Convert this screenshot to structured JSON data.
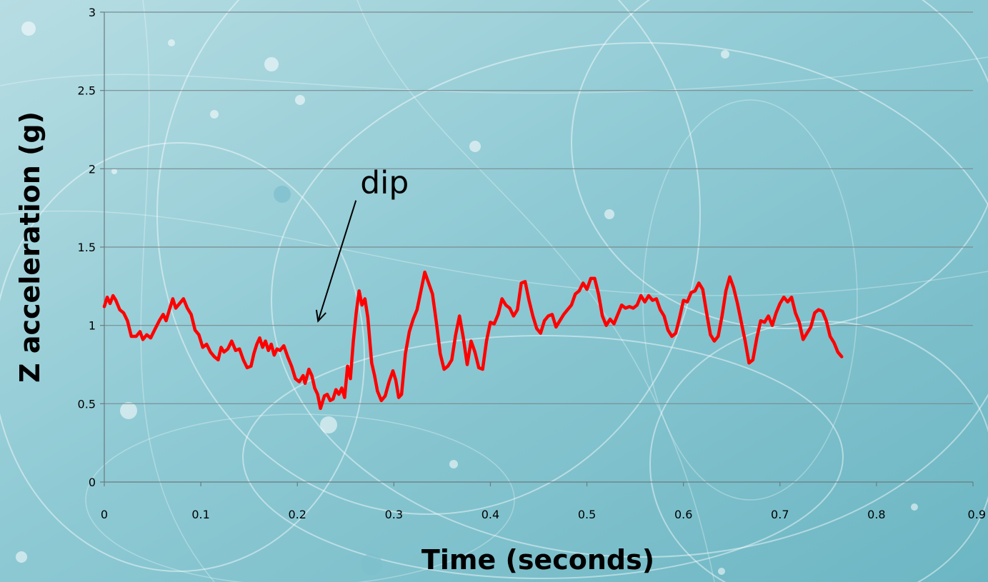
{
  "chart_data": {
    "type": "line",
    "title": "",
    "xlabel": "Time (seconds)",
    "ylabel": "Z acceleration (g)",
    "xlim": [
      0,
      0.9
    ],
    "ylim": [
      0,
      3
    ],
    "x_ticks": [
      "0",
      "0.1",
      "0.2",
      "0.3",
      "0.4",
      "0.5",
      "0.6",
      "0.7",
      "0.8",
      "0.9"
    ],
    "y_ticks": [
      "0",
      "0.5",
      "1",
      "1.5",
      "2",
      "2.5",
      "3"
    ],
    "x_tick_values": [
      0,
      0.1,
      0.2,
      0.3,
      0.4,
      0.5,
      0.6,
      0.7,
      0.8,
      0.9
    ],
    "y_tick_values": [
      0,
      0.5,
      1,
      1.5,
      2,
      2.5,
      3
    ],
    "grid": "horizontal",
    "legend": "none",
    "series": [
      {
        "color": "#ff0000",
        "points": [
          [
            0.0,
            1.12
          ],
          [
            0.003,
            1.18
          ],
          [
            0.006,
            1.14
          ],
          [
            0.009,
            1.19
          ],
          [
            0.012,
            1.16
          ],
          [
            0.016,
            1.1
          ],
          [
            0.02,
            1.08
          ],
          [
            0.024,
            1.03
          ],
          [
            0.028,
            0.93
          ],
          [
            0.033,
            0.93
          ],
          [
            0.037,
            0.96
          ],
          [
            0.04,
            0.91
          ],
          [
            0.044,
            0.94
          ],
          [
            0.048,
            0.92
          ],
          [
            0.052,
            0.97
          ],
          [
            0.057,
            1.03
          ],
          [
            0.061,
            1.07
          ],
          [
            0.064,
            1.03
          ],
          [
            0.067,
            1.09
          ],
          [
            0.071,
            1.17
          ],
          [
            0.074,
            1.11
          ],
          [
            0.078,
            1.14
          ],
          [
            0.082,
            1.17
          ],
          [
            0.086,
            1.11
          ],
          [
            0.09,
            1.07
          ],
          [
            0.094,
            0.97
          ],
          [
            0.098,
            0.94
          ],
          [
            0.102,
            0.86
          ],
          [
            0.106,
            0.88
          ],
          [
            0.11,
            0.83
          ],
          [
            0.114,
            0.8
          ],
          [
            0.118,
            0.78
          ],
          [
            0.121,
            0.86
          ],
          [
            0.124,
            0.83
          ],
          [
            0.128,
            0.85
          ],
          [
            0.132,
            0.9
          ],
          [
            0.136,
            0.84
          ],
          [
            0.14,
            0.85
          ],
          [
            0.144,
            0.78
          ],
          [
            0.148,
            0.73
          ],
          [
            0.152,
            0.74
          ],
          [
            0.155,
            0.82
          ],
          [
            0.158,
            0.88
          ],
          [
            0.161,
            0.92
          ],
          [
            0.164,
            0.86
          ],
          [
            0.167,
            0.9
          ],
          [
            0.17,
            0.84
          ],
          [
            0.173,
            0.88
          ],
          [
            0.176,
            0.81
          ],
          [
            0.179,
            0.85
          ],
          [
            0.182,
            0.84
          ],
          [
            0.186,
            0.87
          ],
          [
            0.19,
            0.8
          ],
          [
            0.194,
            0.74
          ],
          [
            0.198,
            0.66
          ],
          [
            0.202,
            0.64
          ],
          [
            0.206,
            0.68
          ],
          [
            0.208,
            0.63
          ],
          [
            0.212,
            0.72
          ],
          [
            0.215,
            0.68
          ],
          [
            0.218,
            0.6
          ],
          [
            0.221,
            0.56
          ],
          [
            0.224,
            0.47
          ],
          [
            0.228,
            0.55
          ],
          [
            0.231,
            0.56
          ],
          [
            0.234,
            0.52
          ],
          [
            0.237,
            0.53
          ],
          [
            0.24,
            0.59
          ],
          [
            0.243,
            0.56
          ],
          [
            0.246,
            0.6
          ],
          [
            0.249,
            0.54
          ],
          [
            0.252,
            0.74
          ],
          [
            0.255,
            0.66
          ],
          [
            0.258,
            0.9
          ],
          [
            0.261,
            1.08
          ],
          [
            0.264,
            1.22
          ],
          [
            0.267,
            1.13
          ],
          [
            0.27,
            1.17
          ],
          [
            0.273,
            1.05
          ],
          [
            0.277,
            0.76
          ],
          [
            0.28,
            0.68
          ],
          [
            0.283,
            0.58
          ],
          [
            0.287,
            0.52
          ],
          [
            0.291,
            0.55
          ],
          [
            0.295,
            0.64
          ],
          [
            0.299,
            0.71
          ],
          [
            0.302,
            0.65
          ],
          [
            0.305,
            0.54
          ],
          [
            0.308,
            0.56
          ],
          [
            0.312,
            0.82
          ],
          [
            0.316,
            0.96
          ],
          [
            0.32,
            1.04
          ],
          [
            0.324,
            1.1
          ],
          [
            0.328,
            1.22
          ],
          [
            0.332,
            1.34
          ],
          [
            0.336,
            1.27
          ],
          [
            0.34,
            1.2
          ],
          [
            0.344,
            1.02
          ],
          [
            0.348,
            0.82
          ],
          [
            0.352,
            0.72
          ],
          [
            0.356,
            0.74
          ],
          [
            0.36,
            0.78
          ],
          [
            0.364,
            0.94
          ],
          [
            0.368,
            1.06
          ],
          [
            0.372,
            0.92
          ],
          [
            0.376,
            0.75
          ],
          [
            0.38,
            0.9
          ],
          [
            0.384,
            0.83
          ],
          [
            0.388,
            0.73
          ],
          [
            0.392,
            0.72
          ],
          [
            0.396,
            0.9
          ],
          [
            0.4,
            1.02
          ],
          [
            0.404,
            1.01
          ],
          [
            0.408,
            1.07
          ],
          [
            0.412,
            1.17
          ],
          [
            0.416,
            1.13
          ],
          [
            0.42,
            1.11
          ],
          [
            0.424,
            1.06
          ],
          [
            0.428,
            1.1
          ],
          [
            0.432,
            1.27
          ],
          [
            0.436,
            1.28
          ],
          [
            0.44,
            1.16
          ],
          [
            0.444,
            1.06
          ],
          [
            0.448,
            0.98
          ],
          [
            0.452,
            0.95
          ],
          [
            0.456,
            1.03
          ],
          [
            0.46,
            1.06
          ],
          [
            0.464,
            1.07
          ],
          [
            0.468,
            0.99
          ],
          [
            0.472,
            1.03
          ],
          [
            0.476,
            1.07
          ],
          [
            0.48,
            1.1
          ],
          [
            0.484,
            1.13
          ],
          [
            0.488,
            1.2
          ],
          [
            0.492,
            1.22
          ],
          [
            0.496,
            1.27
          ],
          [
            0.5,
            1.23
          ],
          [
            0.504,
            1.3
          ],
          [
            0.508,
            1.3
          ],
          [
            0.512,
            1.2
          ],
          [
            0.516,
            1.06
          ],
          [
            0.52,
            1.0
          ],
          [
            0.524,
            1.04
          ],
          [
            0.528,
            1.01
          ],
          [
            0.532,
            1.07
          ],
          [
            0.536,
            1.13
          ],
          [
            0.54,
            1.11
          ],
          [
            0.544,
            1.12
          ],
          [
            0.548,
            1.11
          ],
          [
            0.552,
            1.13
          ],
          [
            0.556,
            1.19
          ],
          [
            0.56,
            1.15
          ],
          [
            0.564,
            1.19
          ],
          [
            0.568,
            1.16
          ],
          [
            0.572,
            1.17
          ],
          [
            0.576,
            1.1
          ],
          [
            0.58,
            1.06
          ],
          [
            0.584,
            0.97
          ],
          [
            0.588,
            0.93
          ],
          [
            0.592,
            0.95
          ],
          [
            0.596,
            1.05
          ],
          [
            0.6,
            1.16
          ],
          [
            0.604,
            1.15
          ],
          [
            0.608,
            1.21
          ],
          [
            0.612,
            1.22
          ],
          [
            0.616,
            1.27
          ],
          [
            0.62,
            1.23
          ],
          [
            0.624,
            1.08
          ],
          [
            0.628,
            0.94
          ],
          [
            0.632,
            0.9
          ],
          [
            0.636,
            0.93
          ],
          [
            0.64,
            1.06
          ],
          [
            0.644,
            1.22
          ],
          [
            0.648,
            1.31
          ],
          [
            0.652,
            1.24
          ],
          [
            0.656,
            1.14
          ],
          [
            0.66,
            1.02
          ],
          [
            0.664,
            0.9
          ],
          [
            0.668,
            0.76
          ],
          [
            0.672,
            0.78
          ],
          [
            0.676,
            0.92
          ],
          [
            0.68,
            1.03
          ],
          [
            0.684,
            1.02
          ],
          [
            0.688,
            1.06
          ],
          [
            0.692,
            1.0
          ],
          [
            0.696,
            1.08
          ],
          [
            0.7,
            1.14
          ],
          [
            0.704,
            1.18
          ],
          [
            0.708,
            1.15
          ],
          [
            0.712,
            1.18
          ],
          [
            0.716,
            1.08
          ],
          [
            0.72,
            1.02
          ],
          [
            0.724,
            0.91
          ],
          [
            0.728,
            0.95
          ],
          [
            0.732,
            0.99
          ],
          [
            0.736,
            1.08
          ],
          [
            0.74,
            1.1
          ],
          [
            0.744,
            1.09
          ],
          [
            0.748,
            1.03
          ],
          [
            0.752,
            0.93
          ],
          [
            0.756,
            0.89
          ],
          [
            0.76,
            0.83
          ],
          [
            0.764,
            0.8
          ]
        ]
      }
    ],
    "annotations": [
      {
        "text": "dip",
        "arrow_to": [
          0.22,
          1.0
        ]
      }
    ]
  }
}
